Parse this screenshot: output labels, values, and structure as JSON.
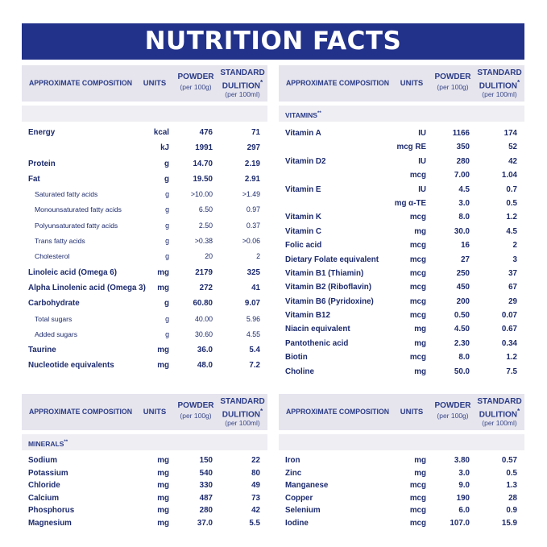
{
  "title": "NUTRITION FACTS",
  "header": {
    "composition": "APPROXIMATE COMPOSITION",
    "units": "UNITS",
    "powder": "POWDER",
    "powder_sub": "(per 100g)",
    "standard": "STANDARD",
    "dilution": "DULITION",
    "dilution_mark": "*",
    "standard_sub": "(per 100ml)"
  },
  "vitamins_label": "VITAMINS",
  "minerals_label": "MINERALS",
  "section_mark": "**",
  "nutrients": [
    {
      "name": "Energy",
      "unit": "kcal",
      "powder": "476",
      "std": "71",
      "sub": false
    },
    {
      "name": "",
      "unit": "kJ",
      "powder": "1991",
      "std": "297",
      "sub": false
    },
    {
      "name": "Protein",
      "unit": "g",
      "powder": "14.70",
      "std": "2.19",
      "sub": false
    },
    {
      "name": "Fat",
      "unit": "g",
      "powder": "19.50",
      "std": "2.91",
      "sub": false
    },
    {
      "name": "Saturated fatty acids",
      "unit": "g",
      "powder": ">10.00",
      "std": ">1.49",
      "sub": true
    },
    {
      "name": "Monounsaturated fatty acids",
      "unit": "g",
      "powder": "6.50",
      "std": "0.97",
      "sub": true
    },
    {
      "name": "Polyunsaturated fatty acids",
      "unit": "g",
      "powder": "2.50",
      "std": "0.37",
      "sub": true
    },
    {
      "name": "Trans fatty acids",
      "unit": "g",
      "powder": ">0.38",
      "std": ">0.06",
      "sub": true
    },
    {
      "name": "Cholesterol",
      "unit": "g",
      "powder": "20",
      "std": "2",
      "sub": true
    },
    {
      "name": "Linoleic acid (Omega 6)",
      "unit": "mg",
      "powder": "2179",
      "std": "325",
      "sub": false
    },
    {
      "name": "Alpha Linolenic acid (Omega 3)",
      "unit": "mg",
      "powder": "272",
      "std": "41",
      "sub": false
    },
    {
      "name": "Carbohydrate",
      "unit": "g",
      "powder": "60.80",
      "std": "9.07",
      "sub": false
    },
    {
      "name": "Total sugars",
      "unit": "g",
      "powder": "40.00",
      "std": "5.96",
      "sub": true
    },
    {
      "name": "Added sugars",
      "unit": "g",
      "powder": "30.60",
      "std": "4.55",
      "sub": true
    },
    {
      "name": "Taurine",
      "unit": "mg",
      "powder": "36.0",
      "std": "5.4",
      "sub": false
    },
    {
      "name": "Nucleotide equivalents",
      "unit": "mg",
      "powder": "48.0",
      "std": "7.2",
      "sub": false
    }
  ],
  "vitamins": [
    {
      "name": "Vitamin A",
      "unit": "IU",
      "powder": "1166",
      "std": "174"
    },
    {
      "name": "",
      "unit": "mcg RE",
      "powder": "350",
      "std": "52"
    },
    {
      "name": "Vitamin D2",
      "unit": "IU",
      "powder": "280",
      "std": "42"
    },
    {
      "name": "",
      "unit": "mcg",
      "powder": "7.00",
      "std": "1.04"
    },
    {
      "name": "Vitamin E",
      "unit": "IU",
      "powder": "4.5",
      "std": "0.7"
    },
    {
      "name": "",
      "unit": "mg α-TE",
      "powder": "3.0",
      "std": "0.5"
    },
    {
      "name": "Vitamin K",
      "unit": "mcg",
      "powder": "8.0",
      "std": "1.2"
    },
    {
      "name": "Vitamin C",
      "unit": "mg",
      "powder": "30.0",
      "std": "4.5"
    },
    {
      "name": "Folic acid",
      "unit": "mcg",
      "powder": "16",
      "std": "2"
    },
    {
      "name": "Dietary Folate equivalent",
      "unit": "mcg",
      "powder": "27",
      "std": "3"
    },
    {
      "name": "Vitamin B1 (Thiamin)",
      "unit": "mcg",
      "powder": "250",
      "std": "37"
    },
    {
      "name": "Vitamin B2 (Riboflavin)",
      "unit": "mcg",
      "powder": "450",
      "std": "67"
    },
    {
      "name": "Vitamin B6 (Pyridoxine)",
      "unit": "mcg",
      "powder": "200",
      "std": "29"
    },
    {
      "name": "Vitamin B12",
      "unit": "mcg",
      "powder": "0.50",
      "std": "0.07"
    },
    {
      "name": "Niacin equivalent",
      "unit": "mg",
      "powder": "4.50",
      "std": "0.67"
    },
    {
      "name": "Pantothenic acid",
      "unit": "mg",
      "powder": "2.30",
      "std": "0.34"
    },
    {
      "name": "Biotin",
      "unit": "mcg",
      "powder": "8.0",
      "std": "1.2"
    },
    {
      "name": "Choline",
      "unit": "mg",
      "powder": "50.0",
      "std": "7.5"
    }
  ],
  "minerals_left": [
    {
      "name": "Sodium",
      "unit": "mg",
      "powder": "150",
      "std": "22"
    },
    {
      "name": "Potassium",
      "unit": "mg",
      "powder": "540",
      "std": "80"
    },
    {
      "name": "Chloride",
      "unit": "mg",
      "powder": "330",
      "std": "49"
    },
    {
      "name": "Calcium",
      "unit": "mg",
      "powder": "487",
      "std": "73"
    },
    {
      "name": "Phosphorus",
      "unit": "mg",
      "powder": "280",
      "std": "42"
    },
    {
      "name": "Magnesium",
      "unit": "mg",
      "powder": "37.0",
      "std": "5.5"
    }
  ],
  "minerals_right": [
    {
      "name": "Iron",
      "unit": "mg",
      "powder": "3.80",
      "std": "0.57"
    },
    {
      "name": "Zinc",
      "unit": "mg",
      "powder": "3.0",
      "std": "0.5"
    },
    {
      "name": "Manganese",
      "unit": "mcg",
      "powder": "9.0",
      "std": "1.3"
    },
    {
      "name": "Copper",
      "unit": "mcg",
      "powder": "190",
      "std": "28"
    },
    {
      "name": "Selenium",
      "unit": "mcg",
      "powder": "6.0",
      "std": "0.9"
    },
    {
      "name": "Iodine",
      "unit": "mcg",
      "powder": "107.0",
      "std": "15.9"
    }
  ]
}
